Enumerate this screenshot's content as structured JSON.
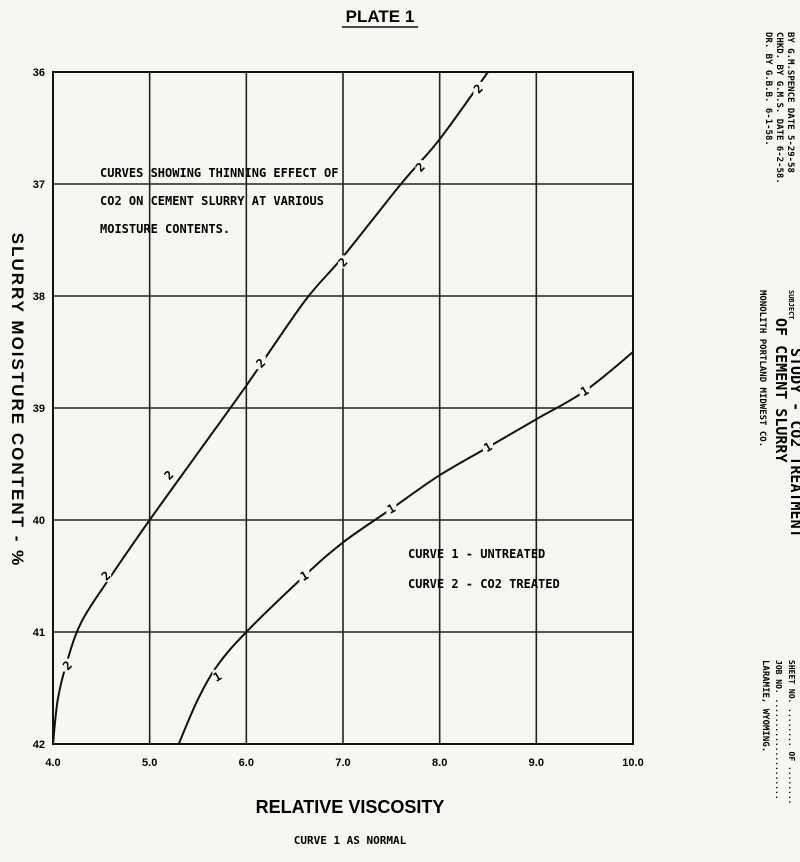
{
  "plate_title": "PLATE 1",
  "title_block": {
    "by_line": "BY G.M.SPENCE DATE 5-29-58",
    "chkd_line": "CHKD. BY G.M.S. DATE 6-2-58.",
    "dr_line": "DR. BY G.B.B. 6-1-58.",
    "subject_label": "SUBJECT",
    "subject_line1": "STUDY - CO2 TREATMENT",
    "subject_line2": "OF CEMENT SLURRY",
    "subject_line3": "MONOLITH PORTLAND MIDWEST CO.",
    "sheet_line": "SHEET NO. ........ OF ........",
    "job_line": "JOB NO. .....................",
    "location_line": "LARAMIE, WYOMING."
  },
  "chart_data": {
    "type": "line",
    "title": "CURVES SHOWING THINNING EFFECT OF CO2 ON CEMENT SLURRY AT VARIOUS MOISTURE CONTENTS.",
    "title_lines": [
      "CURVES SHOWING THINNING EFFECT OF",
      "CO2 ON CEMENT SLURRY AT VARIOUS",
      "MOISTURE CONTENTS."
    ],
    "xlabel": "RELATIVE VISCOSITY",
    "ylabel": "SLURRY MOISTURE CONTENT - %",
    "subnote": "CURVE 1 AS NORMAL",
    "xlim": [
      4.0,
      10.0
    ],
    "ylim": [
      42,
      36
    ],
    "y_inverted": true,
    "x_ticks": [
      "4.0",
      "5.0",
      "6.0",
      "7.0",
      "8.0",
      "9.0",
      "10.0"
    ],
    "y_ticks": [
      "36",
      "37",
      "38",
      "39",
      "40",
      "41",
      "42"
    ],
    "grid": true,
    "legend": [
      "CURVE 1 - UNTREATED",
      "CURVE 2 - CO2 TREATED"
    ],
    "series": [
      {
        "name": "CURVE 1 - UNTREATED",
        "marker": "1",
        "line": [
          [
            5.3,
            42.0
          ],
          [
            5.5,
            41.6
          ],
          [
            5.7,
            41.3
          ],
          [
            6.0,
            41.0
          ],
          [
            6.6,
            40.5
          ],
          [
            7.0,
            40.2
          ],
          [
            7.5,
            39.9
          ],
          [
            8.0,
            39.6
          ],
          [
            8.5,
            39.35
          ],
          [
            9.0,
            39.1
          ],
          [
            9.5,
            38.85
          ],
          [
            10.0,
            38.5
          ]
        ],
        "points": [
          [
            5.7,
            41.4
          ],
          [
            6.6,
            40.5
          ],
          [
            7.5,
            39.9
          ],
          [
            8.5,
            39.35
          ],
          [
            9.5,
            38.85
          ]
        ]
      },
      {
        "name": "CURVE 2 - CO2 TREATED",
        "marker": "2",
        "line": [
          [
            4.0,
            42.0
          ],
          [
            4.05,
            41.6
          ],
          [
            4.15,
            41.25
          ],
          [
            4.3,
            40.9
          ],
          [
            4.6,
            40.5
          ],
          [
            5.0,
            40.0
          ],
          [
            5.5,
            39.4
          ],
          [
            6.0,
            38.8
          ],
          [
            6.6,
            38.05
          ],
          [
            7.0,
            37.65
          ],
          [
            7.6,
            37.0
          ],
          [
            8.0,
            36.6
          ],
          [
            8.5,
            36.0
          ]
        ],
        "points": [
          [
            4.15,
            41.3
          ],
          [
            4.55,
            40.5
          ],
          [
            5.2,
            39.6
          ],
          [
            6.15,
            38.6
          ],
          [
            7.0,
            37.7
          ],
          [
            7.8,
            36.85
          ],
          [
            8.4,
            36.15
          ]
        ]
      }
    ]
  }
}
